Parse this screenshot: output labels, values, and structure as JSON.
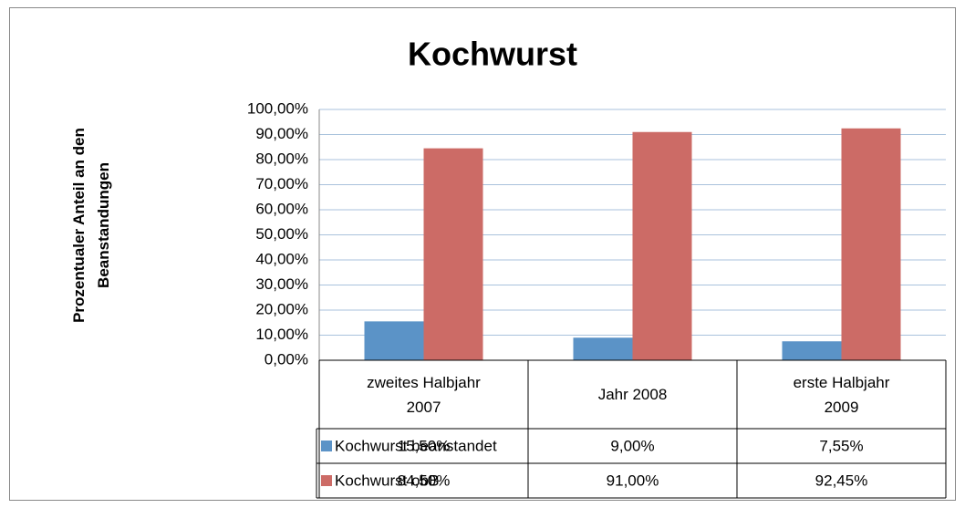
{
  "chart_data": {
    "type": "bar",
    "title": "Kochwurst",
    "y_label": "Prozentualer Anteil an den Beanstandungen",
    "categories": [
      "zweites Halbjahr 2007",
      "Jahr 2008",
      "erste Halbjahr 2009"
    ],
    "series": [
      {
        "name": "Kochwurst beanstandet",
        "color": "#5b93c7",
        "values": [
          15.5,
          9,
          7.55
        ],
        "value_labels": [
          "15,50%",
          "9,00%",
          "7,55%"
        ]
      },
      {
        "name": "Kochwurst obB",
        "color": "#cc6b66",
        "values": [
          84.5,
          91,
          92.45
        ],
        "value_labels": [
          "84,50%",
          "91,00%",
          "92,45%"
        ]
      }
    ],
    "ylim": [
      0,
      100
    ],
    "yticks": [
      {
        "value": 0,
        "label": "0,00%"
      },
      {
        "value": 10,
        "label": "10,00%"
      },
      {
        "value": 20,
        "label": "20,00%"
      },
      {
        "value": 30,
        "label": "30,00%"
      },
      {
        "value": 40,
        "label": "40,00%"
      },
      {
        "value": 50,
        "label": "50,00%"
      },
      {
        "value": 60,
        "label": "60,00%"
      },
      {
        "value": 70,
        "label": "70,00%"
      },
      {
        "value": 80,
        "label": "80,00%"
      },
      {
        "value": 90,
        "label": "90,00%"
      },
      {
        "value": 100,
        "label": "100,00%"
      }
    ],
    "grid": true
  }
}
